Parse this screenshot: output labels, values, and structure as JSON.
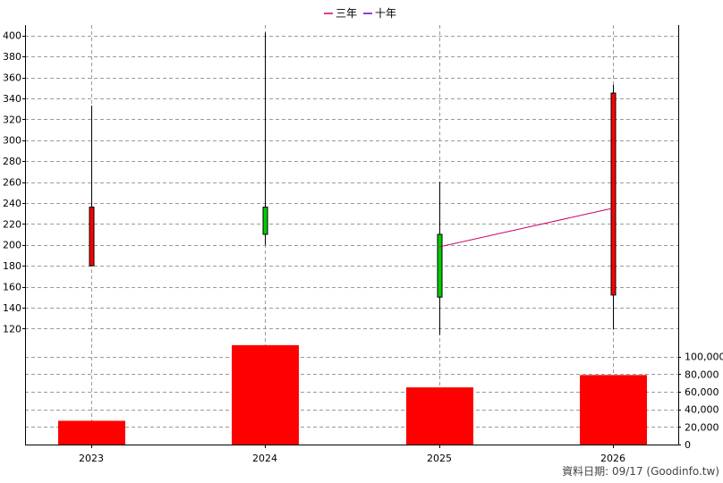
{
  "chart_data": {
    "type": "candlestick+bar",
    "legend": [
      {
        "label": "三年",
        "color": "#cc0066"
      },
      {
        "label": "十年",
        "color": "#6600cc"
      }
    ],
    "categories": [
      "2023",
      "2024",
      "2025",
      "2026"
    ],
    "candles": [
      {
        "x": "2023",
        "open": 180,
        "close": 236,
        "high": 333,
        "low": 180,
        "color": "#ff0000"
      },
      {
        "x": "2024",
        "open": 236,
        "close": 210,
        "high": 403,
        "low": 200,
        "color": "#00cc00"
      },
      {
        "x": "2025",
        "open": 210,
        "close": 150,
        "high": 260,
        "low": 114,
        "color": "#00cc00"
      },
      {
        "x": "2026",
        "open": 152,
        "close": 345,
        "high": 353,
        "low": 119,
        "color": "#ff0000"
      }
    ],
    "three_year_line": {
      "color": "#cc0066",
      "points": [
        {
          "x": "2025",
          "y": 198
        },
        {
          "x": "2026",
          "y": 235
        }
      ]
    },
    "price_axis": {
      "ticks": [
        120,
        140,
        160,
        180,
        200,
        220,
        240,
        260,
        280,
        300,
        320,
        340,
        360,
        380,
        400
      ],
      "range": [
        110,
        410
      ]
    },
    "volume": {
      "values": [
        27000,
        113000,
        65000,
        79000
      ],
      "color": "#ff0000"
    },
    "volume_axis": {
      "ticks": [
        0,
        20000,
        40000,
        60000,
        80000,
        100000
      ],
      "labels": [
        "0",
        "20,000",
        "40,000",
        "60,000",
        "80,000",
        "100,000"
      ],
      "range": [
        0,
        120000
      ]
    },
    "grid": true
  },
  "footer": {
    "text": "資料日期: 09/17  (Goodinfo.tw)"
  }
}
